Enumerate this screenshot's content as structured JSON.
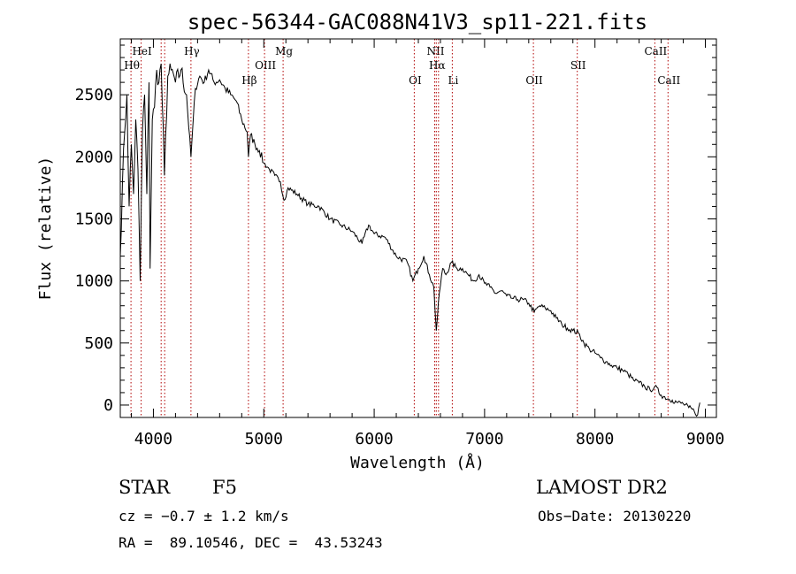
{
  "chart_data": {
    "type": "line",
    "title": "spec-56344-GAC088N41V3_sp11-221.fits",
    "xlabel": "Wavelength (Å)",
    "ylabel": "Flux (relative)",
    "xlim": [
      3700,
      9100
    ],
    "ylim": [
      -100,
      2950
    ],
    "xticks": [
      4000,
      5000,
      6000,
      7000,
      8000,
      9000
    ],
    "yticks": [
      0,
      500,
      1000,
      1500,
      2000,
      2500
    ],
    "grid": false,
    "series": [
      {
        "x": [
          3700,
          3720,
          3740,
          3760,
          3780,
          3800,
          3820,
          3840,
          3860,
          3880,
          3900,
          3920,
          3940,
          3960,
          3970,
          3990,
          4010,
          4030,
          4050,
          4070,
          4100,
          4130,
          4160,
          4200,
          4250,
          4300,
          4340,
          4380,
          4420,
          4460,
          4500,
          4550,
          4600,
          4650,
          4700,
          4750,
          4800,
          4850,
          4861,
          4880,
          4920,
          4960,
          5000,
          5050,
          5100,
          5150,
          5183,
          5220,
          5300,
          5400,
          5500,
          5600,
          5700,
          5800,
          5890,
          5950,
          6000,
          6100,
          6200,
          6300,
          6350,
          6400,
          6450,
          6500,
          6540,
          6563,
          6590,
          6620,
          6650,
          6700,
          6750,
          6800,
          6850,
          6900,
          6950,
          7000,
          7050,
          7100,
          7150,
          7200,
          7250,
          7300,
          7350,
          7400,
          7450,
          7500,
          7550,
          7600,
          7650,
          7700,
          7750,
          7800,
          7850,
          7900,
          7950,
          8000,
          8050,
          8100,
          8150,
          8200,
          8250,
          8300,
          8350,
          8400,
          8450,
          8500,
          8542,
          8600,
          8662,
          8700,
          8750,
          8800,
          8850,
          8900,
          8930,
          8950
        ],
        "y": [
          1200,
          1800,
          2200,
          2500,
          1600,
          2100,
          1700,
          2300,
          1900,
          1000,
          2200,
          2500,
          1700,
          2600,
          1100,
          2300,
          2400,
          2700,
          2600,
          2750,
          1850,
          2650,
          2700,
          2600,
          2700,
          2500,
          2000,
          2550,
          2650,
          2600,
          2700,
          2600,
          2620,
          2550,
          2500,
          2450,
          2300,
          2200,
          2000,
          2180,
          2100,
          2050,
          1950,
          1900,
          1850,
          1800,
          1650,
          1750,
          1700,
          1620,
          1600,
          1500,
          1450,
          1400,
          1300,
          1450,
          1380,
          1350,
          1200,
          1150,
          1000,
          1100,
          1200,
          1050,
          950,
          600,
          900,
          1100,
          1050,
          1150,
          1100,
          1100,
          1050,
          1000,
          1050,
          980,
          950,
          900,
          920,
          880,
          860,
          850,
          850,
          820,
          750,
          800,
          780,
          760,
          700,
          650,
          620,
          600,
          580,
          500,
          450,
          420,
          380,
          350,
          320,
          300,
          280,
          250,
          200,
          180,
          150,
          120,
          150,
          80,
          50,
          40,
          20,
          10,
          -20,
          -50,
          -80,
          20
        ]
      }
    ],
    "line_markers": [
      {
        "label": "Hθ",
        "wavelength": 3797,
        "row": "low"
      },
      {
        "label": "HeI",
        "wavelength": 3889,
        "row": "high"
      },
      {
        "label": "",
        "wavelength": 4070,
        "row": "none"
      },
      {
        "label": "",
        "wavelength": 4102,
        "row": "none"
      },
      {
        "label": "Hγ",
        "wavelength": 4340,
        "row": "high"
      },
      {
        "label": "Hβ",
        "wavelength": 4861,
        "row": "lowest"
      },
      {
        "label": "OIII",
        "wavelength": 5007,
        "row": "mid"
      },
      {
        "label": "Mg",
        "wavelength": 5175,
        "row": "high"
      },
      {
        "label": "OI",
        "wavelength": 6363,
        "row": "lowest"
      },
      {
        "label": "NII",
        "wavelength": 6548,
        "row": "high"
      },
      {
        "label": "Hα",
        "wavelength": 6563,
        "row": "mid"
      },
      {
        "label": "",
        "wavelength": 6583,
        "row": "none"
      },
      {
        "label": "Li",
        "wavelength": 6708,
        "row": "lowest"
      },
      {
        "label": "OII",
        "wavelength": 7442,
        "row": "lowest"
      },
      {
        "label": "SII",
        "wavelength": 7840,
        "row": "mid"
      },
      {
        "label": "CaII",
        "wavelength": 8542,
        "row": "high"
      },
      {
        "label": "CaII",
        "wavelength": 8662,
        "row": "lowest"
      }
    ]
  },
  "info": {
    "object_class": "STAR",
    "subclass": "F5",
    "survey": "LAMOST DR2",
    "cz": "cz = −0.7 ± 1.2 km/s",
    "obs_date": "Obs−Date: 20130220",
    "coords": "RA =  89.10546, DEC =  43.53243"
  }
}
